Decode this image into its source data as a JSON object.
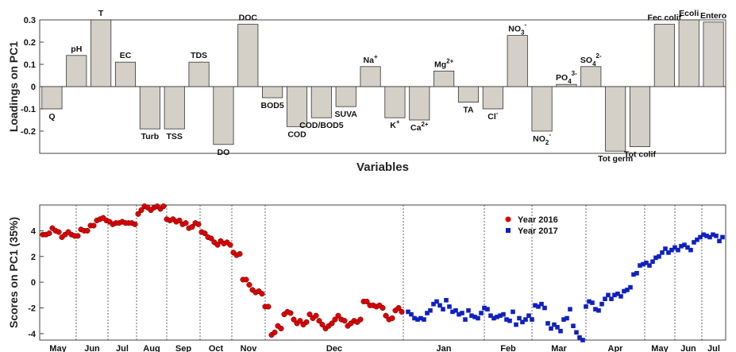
{
  "chart_data": [
    {
      "type": "bar",
      "ylabel": "Loadings on PC1",
      "xlabel": "Variables",
      "ylim": [
        -0.3,
        0.3
      ],
      "yticks": [
        -0.2,
        -0.1,
        0,
        0.1,
        0.2,
        0.3
      ],
      "bar_color": "#d4d0c8",
      "categories": [
        {
          "label": "Q",
          "value": -0.1
        },
        {
          "label": "pH",
          "value": 0.14
        },
        {
          "label": "T",
          "value": 0.3
        },
        {
          "label": "EC",
          "value": 0.11
        },
        {
          "label": "Turb",
          "value": -0.19
        },
        {
          "label": "TSS",
          "value": -0.19
        },
        {
          "label": "TDS",
          "value": 0.11
        },
        {
          "label": "DO",
          "value": -0.26
        },
        {
          "label": "DOC",
          "value": 0.28
        },
        {
          "label": "BOD5",
          "value": -0.05
        },
        {
          "label": "COD",
          "value": -0.18
        },
        {
          "label": "COD/BOD5",
          "value": -0.14
        },
        {
          "label": "SUVA",
          "value": -0.09
        },
        {
          "label": "Na",
          "sup": "+",
          "value": 0.09
        },
        {
          "label": "K",
          "sup": "+",
          "value": -0.14
        },
        {
          "label": "Ca",
          "sup": "2+",
          "value": -0.15
        },
        {
          "label": "Mg",
          "sup": "2+",
          "value": 0.07
        },
        {
          "label": "TA",
          "value": -0.07
        },
        {
          "label": "Cl",
          "sup": "-",
          "value": -0.1
        },
        {
          "label": "NO",
          "sup": "-",
          "sub": "3",
          "value": 0.23
        },
        {
          "label": "NO",
          "sup": "-",
          "sub": "2",
          "value": -0.2
        },
        {
          "label": "PO",
          "sup": "3-",
          "sub": "4",
          "value": 0.01
        },
        {
          "label": "SO",
          "sup": "2-",
          "sub": "4",
          "value": 0.09
        },
        {
          "label": "Tot germ",
          "value": -0.29
        },
        {
          "label": "Tot colif",
          "value": -0.27
        },
        {
          "label": "Fec colif",
          "value": 0.28
        },
        {
          "label": "Ecoli",
          "value": 0.3
        },
        {
          "label": "Entero",
          "value": 0.29
        }
      ]
    },
    {
      "type": "scatter",
      "ylabel": "Scores on PC1 (35%)",
      "ylim": [
        -4.5,
        6
      ],
      "yticks": [
        -4,
        -2,
        0,
        2,
        4
      ],
      "months": [
        "May",
        "Jun",
        "Jul",
        "Aug",
        "Sep",
        "Oct",
        "Nov",
        "Dec",
        "Jan",
        "Feb",
        "Mar",
        "Apr",
        "May",
        "Jun",
        "Jul"
      ],
      "legend": {
        "position": "top-right"
      },
      "series": [
        {
          "name": "Year 2016",
          "marker": "circle",
          "color": "#dd0000",
          "points": [
            [
              0.1,
              3.7
            ],
            [
              0.2,
              3.7
            ],
            [
              0.3,
              3.8
            ],
            [
              0.4,
              4.2
            ],
            [
              0.5,
              4.0
            ],
            [
              0.6,
              3.9
            ],
            [
              0.7,
              3.5
            ],
            [
              0.8,
              3.7
            ],
            [
              0.9,
              3.9
            ],
            [
              1.0,
              3.7
            ],
            [
              1.1,
              3.6
            ],
            [
              1.2,
              3.6
            ],
            [
              1.3,
              4.1
            ],
            [
              1.4,
              4.0
            ],
            [
              1.5,
              4.0
            ],
            [
              1.6,
              4.4
            ],
            [
              1.7,
              4.4
            ],
            [
              1.8,
              4.8
            ],
            [
              1.9,
              4.9
            ],
            [
              2.0,
              5.0
            ],
            [
              2.1,
              4.8
            ],
            [
              2.2,
              4.7
            ],
            [
              2.3,
              4.5
            ],
            [
              2.4,
              4.6
            ],
            [
              2.5,
              4.6
            ],
            [
              2.6,
              4.7
            ],
            [
              2.7,
              4.6
            ],
            [
              2.8,
              4.6
            ],
            [
              2.9,
              4.6
            ],
            [
              3.0,
              4.5
            ],
            [
              3.1,
              5.3
            ],
            [
              3.2,
              5.6
            ],
            [
              3.3,
              5.9
            ],
            [
              3.4,
              5.8
            ],
            [
              3.5,
              5.6
            ],
            [
              3.6,
              5.8
            ],
            [
              3.7,
              5.9
            ],
            [
              3.8,
              5.7
            ],
            [
              3.9,
              5.9
            ],
            [
              4.0,
              4.9
            ],
            [
              4.1,
              4.8
            ],
            [
              4.2,
              4.9
            ],
            [
              4.3,
              4.7
            ],
            [
              4.4,
              4.8
            ],
            [
              4.5,
              4.5
            ],
            [
              4.6,
              4.6
            ],
            [
              4.7,
              4.2
            ],
            [
              4.8,
              4.3
            ],
            [
              4.9,
              4.6
            ],
            [
              5.0,
              4.5
            ],
            [
              5.1,
              3.9
            ],
            [
              5.2,
              3.8
            ],
            [
              5.3,
              3.5
            ],
            [
              5.4,
              3.4
            ],
            [
              5.5,
              3.1
            ],
            [
              5.6,
              2.9
            ],
            [
              5.7,
              3.2
            ],
            [
              5.8,
              3.0
            ],
            [
              5.9,
              3.1
            ],
            [
              6.0,
              2.9
            ],
            [
              6.1,
              2.3
            ],
            [
              6.2,
              2.1
            ],
            [
              6.3,
              2.2
            ],
            [
              6.4,
              0.2
            ],
            [
              6.5,
              0.2
            ],
            [
              6.6,
              -0.2
            ],
            [
              6.7,
              -0.6
            ],
            [
              6.8,
              -0.8
            ],
            [
              6.9,
              -0.7
            ],
            [
              7.0,
              -0.9
            ],
            [
              7.1,
              -1.9
            ],
            [
              7.2,
              -1.9
            ],
            [
              7.3,
              -4.1
            ],
            [
              7.4,
              -3.9
            ],
            [
              7.5,
              -3.4
            ],
            [
              7.6,
              -3.6
            ],
            [
              7.7,
              -2.5
            ],
            [
              7.8,
              -2.3
            ],
            [
              7.9,
              -2.4
            ],
            [
              8.0,
              -2.9
            ],
            [
              8.1,
              -3.2
            ],
            [
              8.2,
              -3.0
            ],
            [
              8.3,
              -3.3
            ],
            [
              8.4,
              -3.1
            ],
            [
              8.5,
              -2.5
            ],
            [
              8.6,
              -2.8
            ],
            [
              8.7,
              -2.6
            ],
            [
              8.8,
              -3.0
            ],
            [
              8.9,
              -3.3
            ],
            [
              9.0,
              -3.6
            ],
            [
              9.1,
              -3.4
            ],
            [
              9.2,
              -3.2
            ],
            [
              9.3,
              -2.9
            ],
            [
              9.4,
              -2.6
            ],
            [
              9.5,
              -2.9
            ],
            [
              9.6,
              -3.0
            ],
            [
              9.7,
              -3.4
            ],
            [
              9.8,
              -3.2
            ],
            [
              9.9,
              -3.0
            ],
            [
              10.0,
              -3.1
            ],
            [
              10.1,
              -2.9
            ],
            [
              10.2,
              -1.5
            ],
            [
              10.3,
              -1.5
            ],
            [
              10.4,
              -1.8
            ],
            [
              10.5,
              -1.8
            ],
            [
              10.6,
              -1.9
            ],
            [
              10.7,
              -1.8
            ],
            [
              10.8,
              -2.0
            ],
            [
              10.9,
              -2.6
            ],
            [
              11.0,
              -2.9
            ],
            [
              11.1,
              -2.8
            ],
            [
              11.2,
              -2.2
            ],
            [
              11.3,
              -2.0
            ],
            [
              11.4,
              -2.3
            ]
          ]
        },
        {
          "name": "Year 2017",
          "marker": "square",
          "color": "#1020c0",
          "points": [
            [
              11.6,
              -2.3
            ],
            [
              11.7,
              -2.5
            ],
            [
              11.8,
              -2.8
            ],
            [
              11.9,
              -2.9
            ],
            [
              12.0,
              -2.8
            ],
            [
              12.1,
              -2.9
            ],
            [
              12.2,
              -2.4
            ],
            [
              12.3,
              -2.2
            ],
            [
              12.4,
              -1.7
            ],
            [
              12.5,
              -1.5
            ],
            [
              12.6,
              -1.8
            ],
            [
              12.7,
              -2.1
            ],
            [
              12.8,
              -1.4
            ],
            [
              12.9,
              -1.9
            ],
            [
              13.0,
              -2.3
            ],
            [
              13.1,
              -2.2
            ],
            [
              13.2,
              -2.5
            ],
            [
              13.3,
              -2.4
            ],
            [
              13.4,
              -2.9
            ],
            [
              13.5,
              -2.2
            ],
            [
              13.6,
              -2.6
            ],
            [
              13.7,
              -2.7
            ],
            [
              13.8,
              -2.8
            ],
            [
              13.9,
              -2.4
            ],
            [
              14.0,
              -2.0
            ],
            [
              14.1,
              -2.1
            ],
            [
              14.2,
              -2.6
            ],
            [
              14.3,
              -2.8
            ],
            [
              14.4,
              -2.7
            ],
            [
              14.5,
              -2.6
            ],
            [
              14.6,
              -2.5
            ],
            [
              14.7,
              -2.9
            ],
            [
              14.8,
              -3.0
            ],
            [
              14.9,
              -2.3
            ],
            [
              15.0,
              -3.3
            ],
            [
              15.1,
              -2.8
            ],
            [
              15.2,
              -3.1
            ],
            [
              15.3,
              -2.9
            ],
            [
              15.4,
              -2.6
            ],
            [
              15.5,
              -2.9
            ],
            [
              15.6,
              -1.8
            ],
            [
              15.7,
              -1.9
            ],
            [
              15.8,
              -1.7
            ],
            [
              15.9,
              -2.0
            ],
            [
              16.0,
              -3.2
            ],
            [
              16.1,
              -3.6
            ],
            [
              16.2,
              -3.3
            ],
            [
              16.3,
              -3.5
            ],
            [
              16.4,
              -3.8
            ],
            [
              16.5,
              -2.9
            ],
            [
              16.6,
              -2.8
            ],
            [
              16.7,
              -2.1
            ],
            [
              16.8,
              -3.4
            ],
            [
              16.9,
              -3.9
            ],
            [
              17.0,
              -4.3
            ],
            [
              17.1,
              -4.5
            ],
            [
              17.2,
              -1.9
            ],
            [
              17.3,
              -1.5
            ],
            [
              17.4,
              -1.6
            ],
            [
              17.5,
              -2.1
            ],
            [
              17.6,
              -2.2
            ],
            [
              17.7,
              -1.7
            ],
            [
              17.8,
              -1.3
            ],
            [
              17.9,
              -1.0
            ],
            [
              18.0,
              -1.3
            ],
            [
              18.1,
              -1.0
            ],
            [
              18.2,
              -0.9
            ],
            [
              18.3,
              -1.1
            ],
            [
              18.4,
              -0.7
            ],
            [
              18.5,
              -0.6
            ],
            [
              18.6,
              -0.4
            ],
            [
              18.7,
              0.6
            ],
            [
              18.8,
              0.7
            ],
            [
              18.9,
              1.3
            ],
            [
              19.0,
              1.4
            ],
            [
              19.1,
              1.5
            ],
            [
              19.2,
              1.3
            ],
            [
              19.3,
              1.6
            ],
            [
              19.4,
              1.9
            ],
            [
              19.5,
              2.0
            ],
            [
              19.6,
              2.3
            ],
            [
              19.7,
              2.6
            ],
            [
              19.8,
              2.3
            ],
            [
              19.9,
              2.5
            ],
            [
              20.0,
              2.7
            ],
            [
              20.1,
              2.5
            ],
            [
              20.2,
              2.8
            ],
            [
              20.3,
              2.9
            ],
            [
              20.4,
              2.7
            ],
            [
              20.5,
              2.5
            ],
            [
              20.6,
              3.1
            ],
            [
              20.7,
              3.3
            ],
            [
              20.8,
              3.5
            ],
            [
              20.9,
              3.7
            ],
            [
              21.0,
              3.6
            ],
            [
              21.1,
              3.5
            ],
            [
              21.2,
              3.7
            ],
            [
              21.3,
              3.6
            ],
            [
              21.4,
              3.2
            ],
            [
              21.5,
              3.5
            ]
          ]
        }
      ]
    }
  ]
}
